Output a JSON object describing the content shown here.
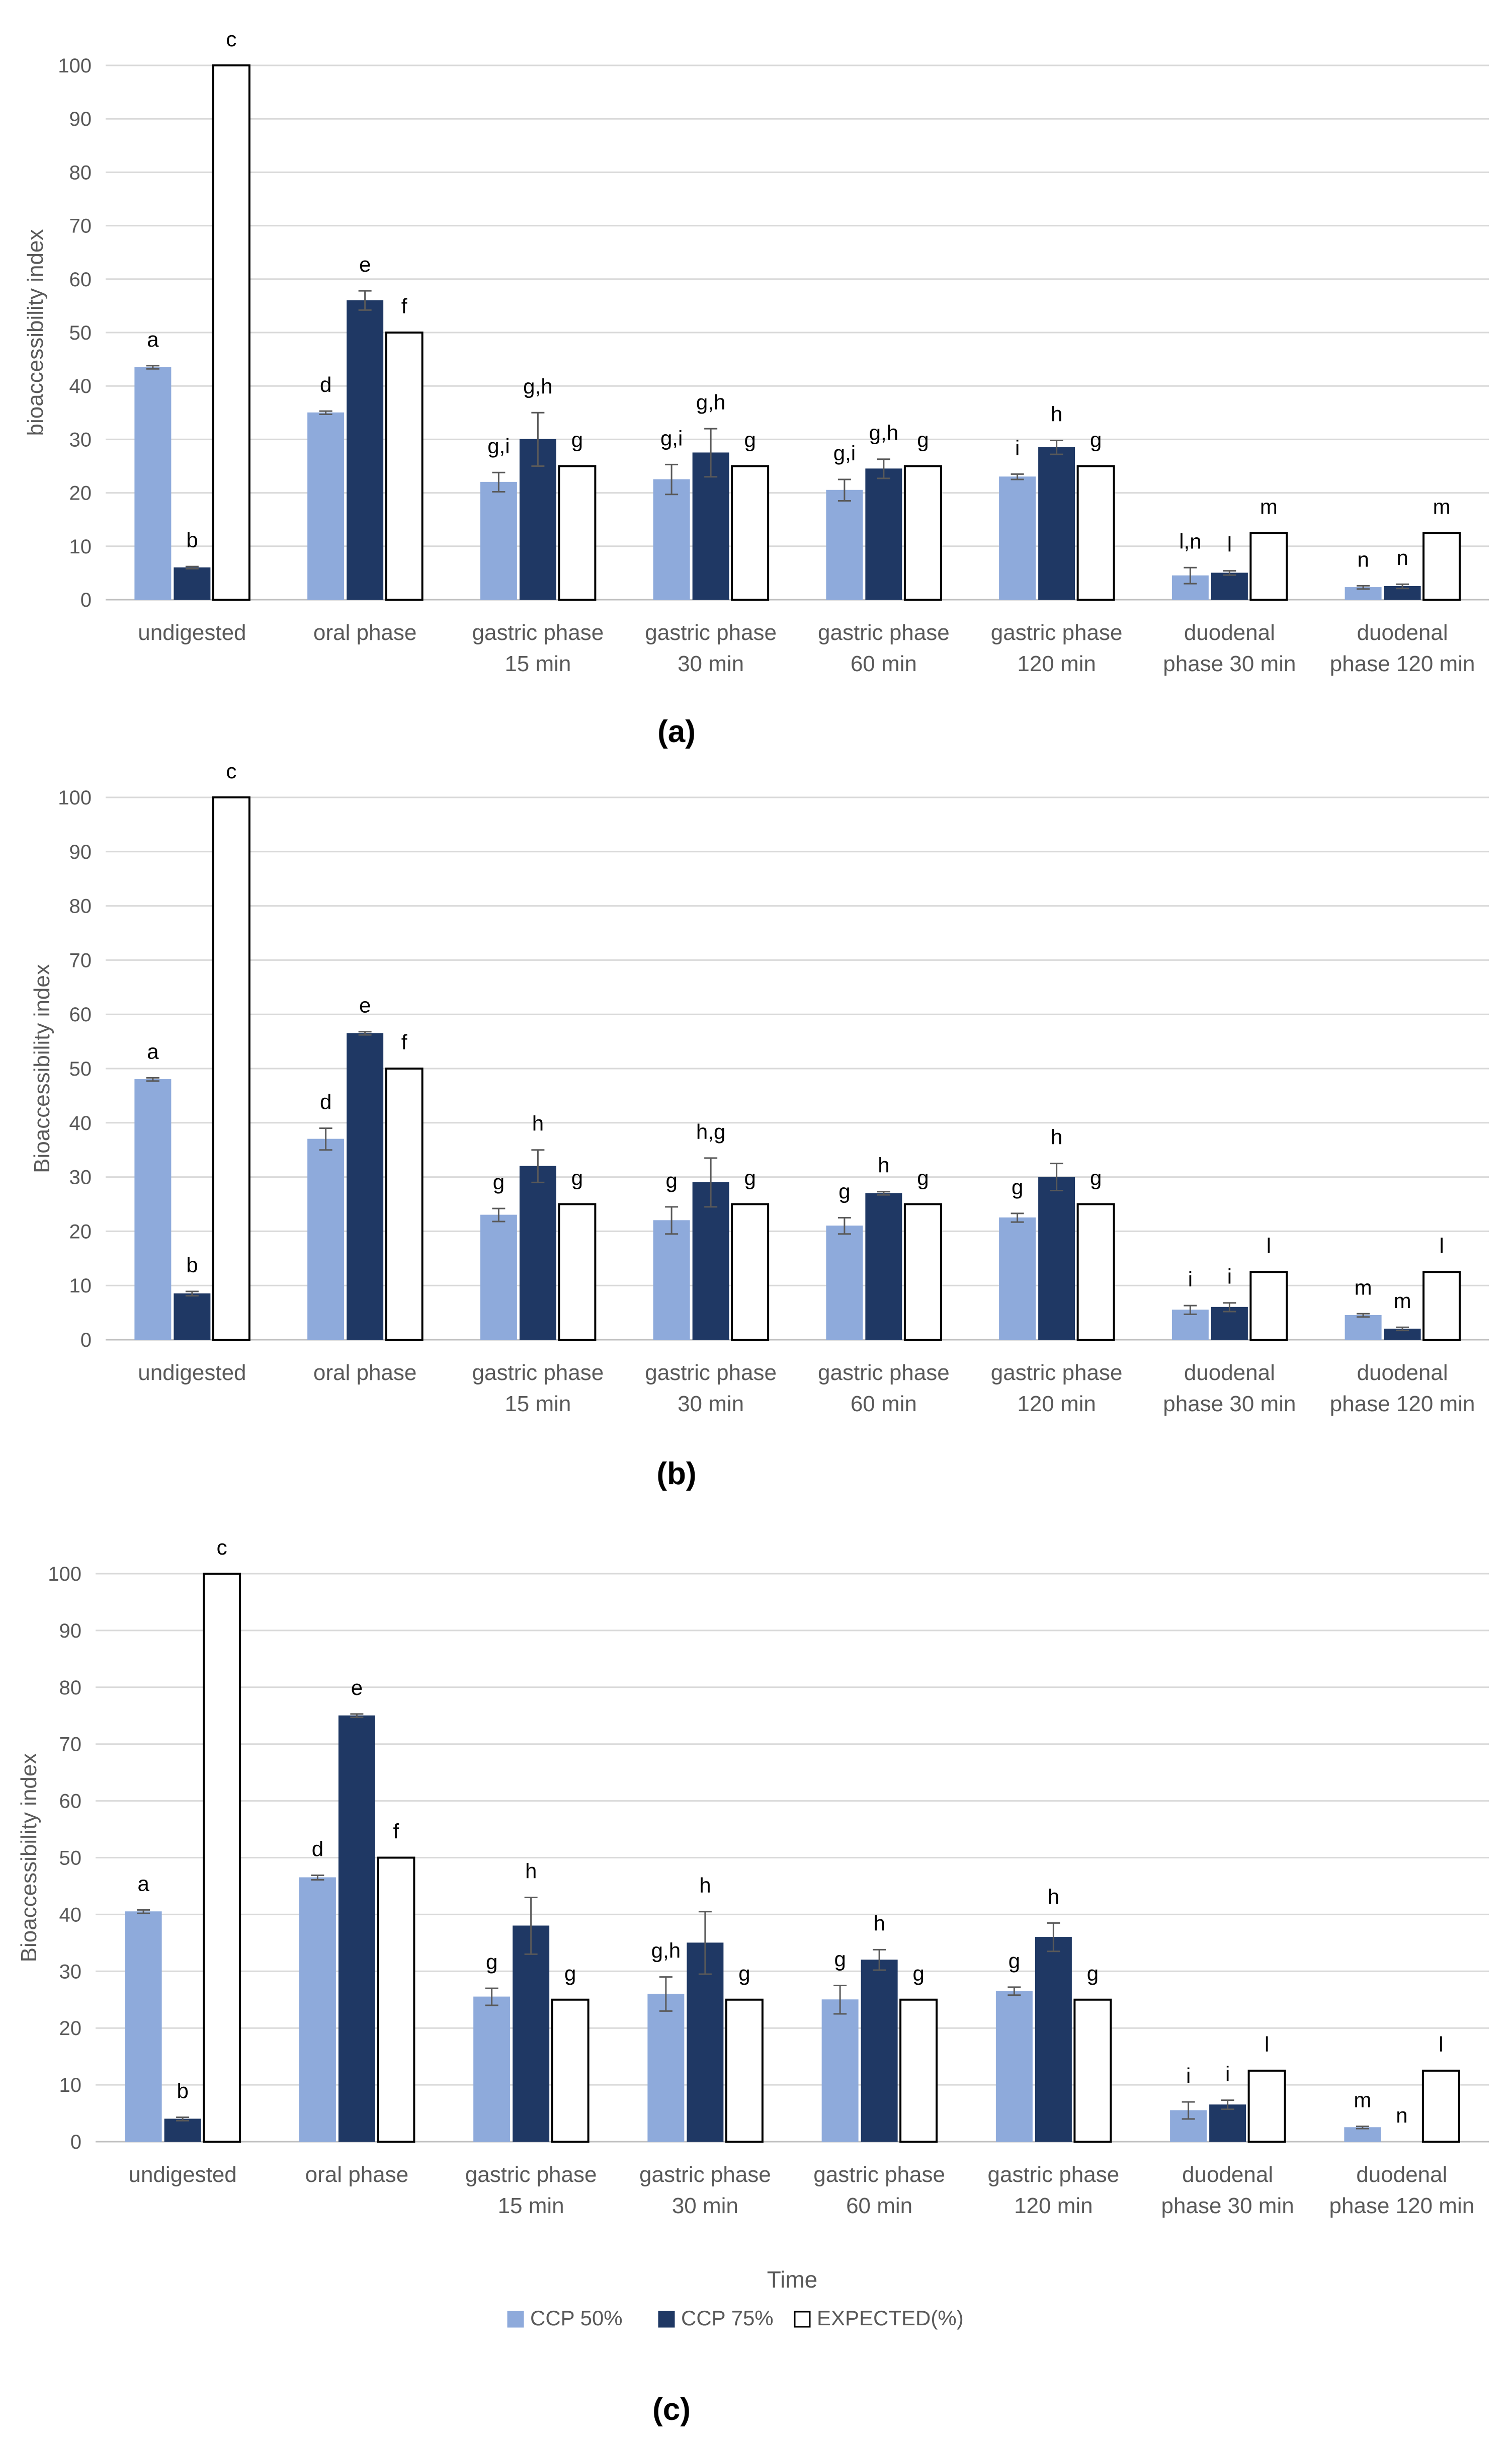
{
  "colors": {
    "ccp50": "#8eaadb",
    "ccp75": "#1f3864",
    "expected": "#ffffff",
    "grid": "#d9d9d9",
    "axis_text": "#595959",
    "error_bar": "#595959"
  },
  "legend": {
    "items": [
      {
        "label": "CCP 50%",
        "color": "#8eaadb"
      },
      {
        "label": "CCP 75%",
        "color": "#1f3864"
      },
      {
        "label": "EXPECTED(%)",
        "color": "#ffffff"
      }
    ]
  },
  "chart_data": [
    {
      "type": "bar",
      "panel_label": "(a)",
      "ylabel": "bioaccessibility index",
      "xlabel": "",
      "ylim": [
        0,
        100
      ],
      "yticks": [
        0,
        10,
        20,
        30,
        40,
        50,
        60,
        70,
        80,
        90,
        100
      ],
      "grid": true,
      "categories": [
        [
          "undigested"
        ],
        [
          "oral phase"
        ],
        [
          "gastric phase",
          "15 min"
        ],
        [
          "gastric phase",
          "30 min"
        ],
        [
          "gastric phase",
          "60 min"
        ],
        [
          "gastric phase",
          "120 min"
        ],
        [
          "duodenal",
          "phase 30 min"
        ],
        [
          "duodenal",
          "phase 120 min"
        ]
      ],
      "series": [
        {
          "name": "CCP 50%",
          "values": [
            43.5,
            35,
            22,
            22.5,
            20.5,
            23,
            4.5,
            2.3
          ],
          "errors": [
            0.3,
            0.3,
            1.8,
            2.8,
            2.0,
            0.5,
            1.5,
            0.3
          ],
          "letters": [
            "a",
            "d",
            "g,i",
            "g,i",
            "g,i",
            "i",
            "l,n",
            "n"
          ]
        },
        {
          "name": "CCP 75%",
          "values": [
            6,
            56,
            30,
            27.5,
            24.5,
            28.5,
            5,
            2.5
          ],
          "errors": [
            0.2,
            1.8,
            5.0,
            4.5,
            1.8,
            1.3,
            0.4,
            0.4
          ],
          "letters": [
            "b",
            "e",
            "g,h",
            "g,h",
            "g,h",
            "h",
            "l",
            "n"
          ]
        },
        {
          "name": "EXPECTED(%)",
          "values": [
            100,
            50,
            25,
            25,
            25,
            25,
            12.5,
            12.5
          ],
          "errors": [
            0,
            0,
            0,
            0,
            0,
            0,
            0,
            0
          ],
          "letters": [
            "c",
            "f",
            "g",
            "g",
            "g",
            "g",
            "m",
            "m"
          ]
        }
      ]
    },
    {
      "type": "bar",
      "panel_label": "(b)",
      "ylabel": "Bioaccessibility index",
      "xlabel": "",
      "ylim": [
        0,
        100
      ],
      "yticks": [
        0,
        10,
        20,
        30,
        40,
        50,
        60,
        70,
        80,
        90,
        100
      ],
      "grid": true,
      "categories": [
        [
          "undigested"
        ],
        [
          "oral phase"
        ],
        [
          "gastric phase",
          "15 min"
        ],
        [
          "gastric phase",
          "30 min"
        ],
        [
          "gastric phase",
          "60 min"
        ],
        [
          "gastric phase",
          "120 min"
        ],
        [
          "duodenal",
          "phase 30 min"
        ],
        [
          "duodenal",
          "phase 120 min"
        ]
      ],
      "series": [
        {
          "name": "CCP 50%",
          "values": [
            48,
            37,
            23,
            22,
            21,
            22.5,
            5.5,
            4.5
          ],
          "errors": [
            0.3,
            2.0,
            1.2,
            2.5,
            1.5,
            0.8,
            0.8,
            0.3
          ],
          "letters": [
            "a",
            "d",
            "g",
            "g",
            "g",
            "g",
            "i",
            "m"
          ]
        },
        {
          "name": "CCP 75%",
          "values": [
            8.5,
            56.5,
            32,
            29,
            27,
            30,
            6,
            2
          ],
          "errors": [
            0.4,
            0.3,
            3.0,
            4.5,
            0.3,
            2.5,
            0.8,
            0.3
          ],
          "letters": [
            "b",
            "e",
            "h",
            "h,g",
            "h",
            "h",
            "i",
            "m"
          ]
        },
        {
          "name": "EXPECTED(%)",
          "values": [
            100,
            50,
            25,
            25,
            25,
            25,
            12.5,
            12.5
          ],
          "errors": [
            0,
            0,
            0,
            0,
            0,
            0,
            0,
            0
          ],
          "letters": [
            "c",
            "f",
            "g",
            "g",
            "g",
            "g",
            "l",
            "l"
          ]
        }
      ]
    },
    {
      "type": "bar",
      "panel_label": "(c)",
      "ylabel": "Bioaccessibility index",
      "xlabel": "Time",
      "ylim": [
        0,
        100
      ],
      "yticks": [
        0,
        10,
        20,
        30,
        40,
        50,
        60,
        70,
        80,
        90,
        100
      ],
      "grid": true,
      "categories": [
        [
          "undigested"
        ],
        [
          "oral phase"
        ],
        [
          "gastric phase",
          "15 min"
        ],
        [
          "gastric phase",
          "30 min"
        ],
        [
          "gastric phase",
          "60 min"
        ],
        [
          "gastric phase",
          "120 min"
        ],
        [
          "duodenal",
          "phase 30 min"
        ],
        [
          "duodenal",
          "phase 120 min"
        ]
      ],
      "series": [
        {
          "name": "CCP 50%",
          "values": [
            40.5,
            46.5,
            25.5,
            26,
            25,
            26.5,
            5.5,
            2.5
          ],
          "errors": [
            0.3,
            0.4,
            1.5,
            3.0,
            2.5,
            0.7,
            1.5,
            0.2
          ],
          "letters": [
            "a",
            "d",
            "g",
            "g,h",
            "g",
            "g",
            "i",
            "m"
          ]
        },
        {
          "name": "CCP 75%",
          "values": [
            4,
            75,
            38,
            35,
            32,
            36,
            6.5,
            0
          ],
          "errors": [
            0.3,
            0.3,
            5.0,
            5.5,
            1.8,
            2.5,
            0.8,
            0
          ],
          "letters": [
            "b",
            "e",
            "h",
            "h",
            "h",
            "h",
            "i",
            "n"
          ]
        },
        {
          "name": "EXPECTED(%)",
          "values": [
            100,
            50,
            25,
            25,
            25,
            25,
            12.5,
            12.5
          ],
          "errors": [
            0,
            0,
            0,
            0,
            0,
            0,
            0,
            0
          ],
          "letters": [
            "c",
            "f",
            "g",
            "g",
            "g",
            "g",
            "l",
            "l"
          ]
        }
      ]
    }
  ]
}
